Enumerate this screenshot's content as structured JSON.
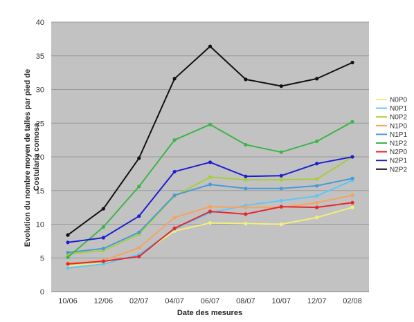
{
  "chart_data": {
    "type": "line",
    "xlabel": "Date des mesures",
    "ylabel_lines": [
      "Evolution du nombre moyen de talles par pied de",
      "Costularia comosa"
    ],
    "categories": [
      "10/06",
      "12/06",
      "02/07",
      "04/07",
      "06/07",
      "08/07",
      "10/07",
      "12/07",
      "02/08"
    ],
    "ylim": [
      0,
      40
    ],
    "yticks": [
      0,
      5,
      10,
      15,
      20,
      25,
      30,
      35,
      40
    ],
    "grid": true,
    "legend_position": "right",
    "series": [
      {
        "name": "N0P0",
        "color": "#f2ef7a",
        "values": [
          3.8,
          4.2,
          5.4,
          9.0,
          10.2,
          10.1,
          10.0,
          11.0,
          12.5
        ]
      },
      {
        "name": "N0P1",
        "color": "#62c6f2",
        "values": [
          3.5,
          4.1,
          5.5,
          9.3,
          11.7,
          12.8,
          13.5,
          14.2,
          16.5
        ]
      },
      {
        "name": "N0P2",
        "color": "#a6ce39",
        "values": [
          5.6,
          6.1,
          8.5,
          14.2,
          17.0,
          16.6,
          16.6,
          16.7,
          20.0
        ]
      },
      {
        "name": "N1P0",
        "color": "#f7a35c",
        "values": [
          4.2,
          4.6,
          6.5,
          11.0,
          12.6,
          12.5,
          12.5,
          13.2,
          14.3
        ]
      },
      {
        "name": "N1P1",
        "color": "#4a9ad6",
        "values": [
          5.8,
          6.4,
          8.8,
          14.3,
          15.9,
          15.3,
          15.3,
          15.7,
          16.8
        ]
      },
      {
        "name": "N1P2",
        "color": "#3cb54a",
        "values": [
          5.1,
          9.6,
          15.6,
          22.5,
          24.8,
          21.8,
          20.7,
          22.3,
          25.2
        ]
      },
      {
        "name": "N2P0",
        "color": "#e8262d",
        "values": [
          4.1,
          4.5,
          5.2,
          9.4,
          11.9,
          11.5,
          12.6,
          12.5,
          13.2
        ]
      },
      {
        "name": "N2P1",
        "color": "#1d1ed1",
        "values": [
          7.3,
          8.0,
          11.2,
          17.8,
          19.2,
          17.1,
          17.2,
          19.0,
          20.0
        ]
      },
      {
        "name": "N2P2",
        "color": "#111111",
        "values": [
          8.4,
          12.3,
          19.8,
          31.6,
          36.4,
          31.5,
          30.5,
          31.6,
          34.0
        ]
      }
    ]
  }
}
